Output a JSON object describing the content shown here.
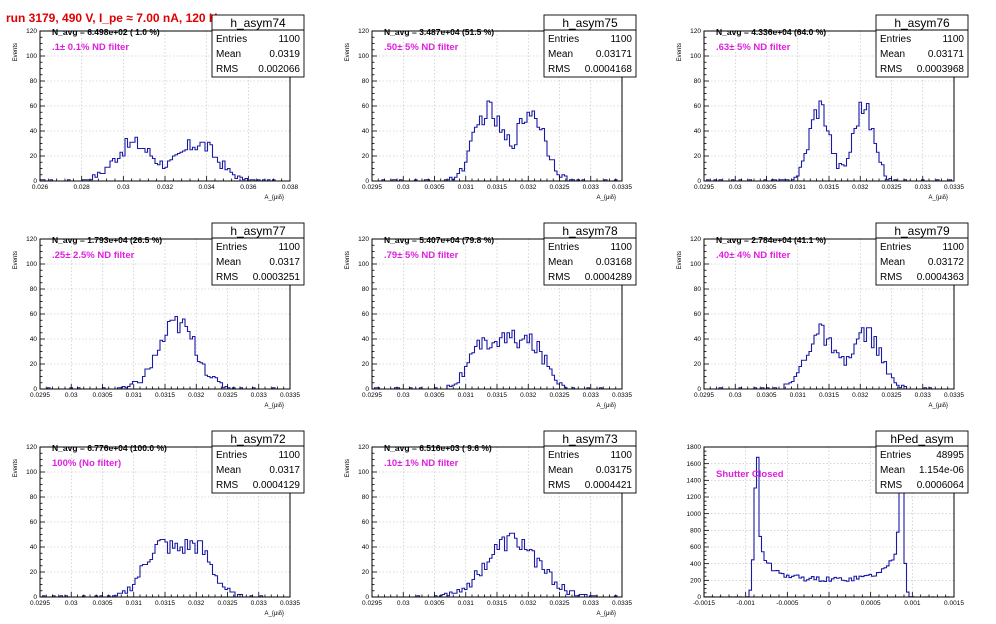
{
  "run_title": "run 3179,   490 V, I_pe ≈ 7.00 nA, 120 Hz",
  "colors": {
    "hist": "#1a1aa6",
    "annotation": "#e020e0",
    "title": "#e00000"
  },
  "chart_data": [
    {
      "type": "bar",
      "name": "h_asym74",
      "annotation_navg": "N_avg = 6.498e+02 ( 1.0 %)",
      "annotation_filter": ".1± 0.1% ND filter",
      "stats": {
        "entries_label": "Entries",
        "entries": "1100",
        "mean_label": "Mean",
        "mean": "0.0319",
        "rms_label": "RMS",
        "rms": "0.002066"
      },
      "xlabel": "A_{μιδ}",
      "ylabel": "Events",
      "xlim": [
        0.026,
        0.038
      ],
      "ylim": [
        0,
        120
      ],
      "xticks": [
        0.026,
        0.028,
        0.03,
        0.032,
        0.034,
        0.036,
        0.038
      ],
      "xtick_labels": [
        "0.026",
        "0.028",
        "0.03",
        "0.032",
        "0.034",
        "0.036",
        "0.038"
      ],
      "yticks": [
        0,
        20,
        40,
        60,
        80,
        100,
        120
      ],
      "dist": {
        "type": "gmm",
        "components": [
          [
            0.0305,
            0.0009,
            0.5
          ],
          [
            0.0336,
            0.0009,
            0.5
          ]
        ],
        "peak": 30,
        "nbins": 100
      }
    },
    {
      "type": "bar",
      "name": "h_asym75",
      "annotation_navg": "N_avg = 3.487e+04 (51.5 %)",
      "annotation_filter": ".50± 5% ND filter",
      "stats": {
        "entries_label": "Entries",
        "entries": "1100",
        "mean_label": "Mean",
        "mean": "0.03171",
        "rms_label": "RMS",
        "rms": "0.0004168"
      },
      "xlabel": "A_{μιδ}",
      "ylabel": "Events",
      "xlim": [
        0.0295,
        0.0335
      ],
      "ylim": [
        0,
        120
      ],
      "xticks": [
        0.0295,
        0.03,
        0.0305,
        0.031,
        0.0315,
        0.032,
        0.0325,
        0.033,
        0.0335
      ],
      "xtick_labels": [
        "0.0295",
        "0.03",
        "0.0305",
        "0.031",
        "0.0315",
        "0.032",
        "0.0325",
        "0.033",
        "0.0335"
      ],
      "yticks": [
        0,
        20,
        40,
        60,
        80,
        100,
        120
      ],
      "dist": {
        "type": "gmm",
        "components": [
          [
            0.03135,
            0.00022,
            0.5
          ],
          [
            0.03205,
            0.00022,
            0.5
          ]
        ],
        "peak": 56,
        "nbins": 100
      }
    },
    {
      "type": "bar",
      "name": "h_asym76",
      "annotation_navg": "N_avg = 4.336e+04 (64.0 %)",
      "annotation_filter": ".63± 5% ND filter",
      "stats": {
        "entries_label": "Entries",
        "entries": "1100",
        "mean_label": "Mean",
        "mean": "0.03171",
        "rms_label": "RMS",
        "rms": "0.0003968"
      },
      "xlabel": "A_{μιδ}",
      "ylabel": "Events",
      "xlim": [
        0.0295,
        0.0335
      ],
      "ylim": [
        0,
        120
      ],
      "xticks": [
        0.0295,
        0.03,
        0.0305,
        0.031,
        0.0315,
        0.032,
        0.0325,
        0.033,
        0.0335
      ],
      "xtick_labels": [
        "0.0295",
        "0.03",
        "0.0305",
        "0.031",
        "0.0315",
        "0.032",
        "0.0325",
        "0.033",
        "0.0335"
      ],
      "yticks": [
        0,
        20,
        40,
        60,
        80,
        100,
        120
      ],
      "dist": {
        "type": "gmm",
        "components": [
          [
            0.03135,
            0.00016,
            0.5
          ],
          [
            0.03205,
            0.00016,
            0.5
          ]
        ],
        "peak": 60,
        "nbins": 100
      }
    },
    {
      "type": "bar",
      "name": "h_asym77",
      "annotation_navg": "N_avg = 1.793e+04 (26.5 %)",
      "annotation_filter": ".25± 2.5% ND filter",
      "stats": {
        "entries_label": "Entries",
        "entries": "1100",
        "mean_label": "Mean",
        "mean": "0.0317",
        "rms_label": "RMS",
        "rms": "0.0003251"
      },
      "xlabel": "A_{μιδ}",
      "ylabel": "Events",
      "xlim": [
        0.0295,
        0.0335
      ],
      "ylim": [
        0,
        120
      ],
      "xticks": [
        0.0295,
        0.03,
        0.0305,
        0.031,
        0.0315,
        0.032,
        0.0325,
        0.033,
        0.0335
      ],
      "xtick_labels": [
        "0.0295",
        "0.03",
        "0.0305",
        "0.031",
        "0.0315",
        "0.032",
        "0.0325",
        "0.033",
        "0.0335"
      ],
      "yticks": [
        0,
        20,
        40,
        60,
        80,
        100,
        120
      ],
      "dist": {
        "type": "gmm",
        "components": [
          [
            0.0317,
            0.0003,
            1.0
          ]
        ],
        "peak": 52,
        "nbins": 100
      }
    },
    {
      "type": "bar",
      "name": "h_asym78",
      "annotation_navg": "N_avg = 5.407e+04 (79.8 %)",
      "annotation_filter": ".79± 5% ND filter",
      "stats": {
        "entries_label": "Entries",
        "entries": "1100",
        "mean_label": "Mean",
        "mean": "0.03168",
        "rms_label": "RMS",
        "rms": "0.0004289"
      },
      "xlabel": "A_{μιδ}",
      "ylabel": "Events",
      "xlim": [
        0.0295,
        0.0335
      ],
      "ylim": [
        0,
        120
      ],
      "xticks": [
        0.0295,
        0.03,
        0.0305,
        0.031,
        0.0315,
        0.032,
        0.0325,
        0.033,
        0.0335
      ],
      "xtick_labels": [
        "0.0295",
        "0.03",
        "0.0305",
        "0.031",
        "0.0315",
        "0.032",
        "0.0325",
        "0.033",
        "0.0335"
      ],
      "yticks": [
        0,
        20,
        40,
        60,
        80,
        100,
        120
      ],
      "dist": {
        "type": "gmm",
        "components": [
          [
            0.03125,
            0.00022,
            0.33
          ],
          [
            0.03168,
            0.00022,
            0.34
          ],
          [
            0.0321,
            0.00022,
            0.33
          ]
        ],
        "peak": 40,
        "nbins": 100
      }
    },
    {
      "type": "bar",
      "name": "h_asym79",
      "annotation_navg": "N_avg = 2.784e+04 (41.1 %)",
      "annotation_filter": ".40± 4% ND filter",
      "stats": {
        "entries_label": "Entries",
        "entries": "1100",
        "mean_label": "Mean",
        "mean": "0.03172",
        "rms_label": "RMS",
        "rms": "0.0004363"
      },
      "xlabel": "A_{μιδ}",
      "ylabel": "Events",
      "xlim": [
        0.0295,
        0.0335
      ],
      "ylim": [
        0,
        120
      ],
      "xticks": [
        0.0295,
        0.03,
        0.0305,
        0.031,
        0.0315,
        0.032,
        0.0325,
        0.033,
        0.0335
      ],
      "xtick_labels": [
        "0.0295",
        "0.03",
        "0.0305",
        "0.031",
        "0.0315",
        "0.032",
        "0.0325",
        "0.033",
        "0.0335"
      ],
      "yticks": [
        0,
        20,
        40,
        60,
        80,
        100,
        120
      ],
      "dist": {
        "type": "gmm",
        "components": [
          [
            0.03135,
            0.00022,
            0.5
          ],
          [
            0.0321,
            0.00022,
            0.5
          ]
        ],
        "peak": 45,
        "nbins": 100
      }
    },
    {
      "type": "bar",
      "name": "h_asym72",
      "annotation_navg": "N_avg = 6.776e+04 (100.0 %)",
      "annotation_filter": "100% (No filter)",
      "stats": {
        "entries_label": "Entries",
        "entries": "1100",
        "mean_label": "Mean",
        "mean": "0.0317",
        "rms_label": "RMS",
        "rms": "0.0004129"
      },
      "xlabel": "A_{μιδ}",
      "ylabel": "Events",
      "xlim": [
        0.0295,
        0.0335
      ],
      "ylim": [
        0,
        120
      ],
      "xticks": [
        0.0295,
        0.03,
        0.0305,
        0.031,
        0.0315,
        0.032,
        0.0325,
        0.033,
        0.0335
      ],
      "xtick_labels": [
        "0.0295",
        "0.03",
        "0.0305",
        "0.031",
        "0.0315",
        "0.032",
        "0.0325",
        "0.033",
        "0.0335"
      ],
      "yticks": [
        0,
        20,
        40,
        60,
        80,
        100,
        120
      ],
      "dist": {
        "type": "gmm",
        "components": [
          [
            0.0314,
            0.00025,
            0.5
          ],
          [
            0.032,
            0.00025,
            0.5
          ]
        ],
        "peak": 42,
        "nbins": 100
      }
    },
    {
      "type": "bar",
      "name": "h_asym73",
      "annotation_navg": "N_avg = 6.516e+03 ( 9.6 %)",
      "annotation_filter": ".10± 1% ND filter",
      "stats": {
        "entries_label": "Entries",
        "entries": "1100",
        "mean_label": "Mean",
        "mean": "0.03175",
        "rms_label": "RMS",
        "rms": "0.0004421"
      },
      "xlabel": "A_{μιδ}",
      "ylabel": "Events",
      "xlim": [
        0.0295,
        0.0335
      ],
      "ylim": [
        0,
        120
      ],
      "xticks": [
        0.0295,
        0.03,
        0.0305,
        0.031,
        0.0315,
        0.032,
        0.0325,
        0.033,
        0.0335
      ],
      "xtick_labels": [
        "0.0295",
        "0.03",
        "0.0305",
        "0.031",
        "0.0315",
        "0.032",
        "0.0325",
        "0.033",
        "0.0335"
      ],
      "yticks": [
        0,
        20,
        40,
        60,
        80,
        100,
        120
      ],
      "dist": {
        "type": "gmm",
        "components": [
          [
            0.03175,
            0.00042,
            1.0
          ]
        ],
        "peak": 45,
        "nbins": 100
      }
    },
    {
      "type": "bar",
      "name": "hPed_asym",
      "annotation_navg": "",
      "annotation_filter": "Shutter Closed",
      "stats": {
        "entries_label": "Entries",
        "entries": "48995",
        "mean_label": "Mean",
        "mean": "1.154e-06",
        "rms_label": "RMS",
        "rms": "0.0006064"
      },
      "xlabel": "",
      "ylabel": "",
      "xlim": [
        -0.0015,
        0.0015
      ],
      "ylim": [
        0,
        1800
      ],
      "xticks": [
        -0.0015,
        -0.001,
        -0.0005,
        0.0,
        0.0005,
        0.001,
        0.0015
      ],
      "xtick_labels": [
        "-0.0015",
        "-0.001",
        "-0.0005",
        "0",
        "0.0005",
        "0.001",
        "0.0015"
      ],
      "yticks": [
        0,
        200,
        400,
        600,
        800,
        1000,
        1200,
        1400,
        1600,
        1800
      ],
      "dist": {
        "type": "arcsine",
        "center": 0.0,
        "halfwidth": 0.00086,
        "peak": 1720,
        "floor": 210,
        "nbins": 100
      }
    }
  ]
}
